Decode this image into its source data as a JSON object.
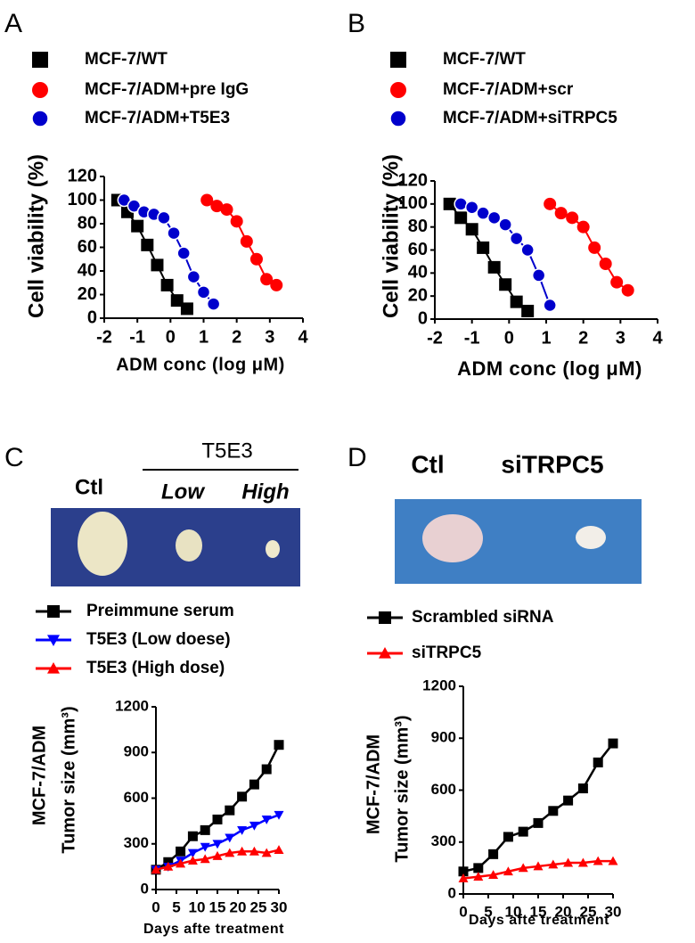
{
  "chart_data": [
    {
      "type": "line",
      "panel": "A",
      "xlabel": "ADM conc (log μM)",
      "ylabel": [
        "Cell viability (%)"
      ],
      "xlim": [
        -2,
        4
      ],
      "ylim": [
        0,
        120
      ],
      "xticks": [
        -2,
        -1,
        0,
        1,
        2,
        3,
        4
      ],
      "yticks": [
        0,
        20,
        40,
        60,
        80,
        100,
        120
      ],
      "series": [
        {
          "name": "MCF-7/WT",
          "color": "#000000",
          "marker": "square",
          "x": [
            -1.6,
            -1.3,
            -1.0,
            -0.7,
            -0.4,
            -0.1,
            0.2,
            0.5
          ],
          "values": [
            100,
            90,
            78,
            62,
            45,
            28,
            15,
            8
          ]
        },
        {
          "name": "MCF-7/ADM+pre IgG",
          "color": "#ff0000",
          "marker": "circle",
          "x": [
            1.1,
            1.4,
            1.7,
            2.0,
            2.3,
            2.6,
            2.9,
            3.2
          ],
          "values": [
            100,
            95,
            92,
            82,
            65,
            50,
            33,
            28
          ]
        },
        {
          "name": "MCF-7/ADM+T5E3",
          "color": "#0000cc",
          "marker": "ring",
          "x": [
            -1.4,
            -1.1,
            -0.8,
            -0.5,
            -0.2,
            0.1,
            0.4,
            0.7,
            1.0,
            1.3
          ],
          "values": [
            100,
            95,
            90,
            88,
            85,
            72,
            55,
            35,
            22,
            12
          ]
        }
      ]
    },
    {
      "type": "line",
      "panel": "B",
      "xlabel": "ADM conc (log μM)",
      "ylabel": [
        "Cell viability (%)"
      ],
      "xlim": [
        -2,
        4
      ],
      "ylim": [
        0,
        120
      ],
      "xticks": [
        -2,
        -1,
        0,
        1,
        2,
        3,
        4
      ],
      "yticks": [
        0,
        20,
        40,
        60,
        80,
        100,
        120
      ],
      "series": [
        {
          "name": "MCF-7/WT",
          "color": "#000000",
          "marker": "square",
          "x": [
            -1.6,
            -1.3,
            -1.0,
            -0.7,
            -0.4,
            -0.1,
            0.2,
            0.5
          ],
          "values": [
            100,
            88,
            78,
            62,
            45,
            30,
            15,
            7
          ]
        },
        {
          "name": "MCF-7/ADM+scr",
          "color": "#ff0000",
          "marker": "circle",
          "x": [
            1.1,
            1.4,
            1.7,
            2.0,
            2.3,
            2.6,
            2.9,
            3.2
          ],
          "values": [
            100,
            92,
            88,
            80,
            62,
            48,
            32,
            25
          ]
        },
        {
          "name": "MCF-7/ADM+siTRPC5",
          "color": "#0000cc",
          "marker": "ring",
          "x": [
            -1.3,
            -1.0,
            -0.7,
            -0.4,
            -0.1,
            0.2,
            0.5,
            0.8,
            1.1
          ],
          "values": [
            100,
            97,
            92,
            88,
            82,
            70,
            60,
            38,
            12
          ]
        }
      ]
    },
    {
      "type": "line",
      "panel": "C",
      "xlabel": "Days afte treatment",
      "ylabel": [
        "MCF-7/ADM",
        "Tumor size (mm³)"
      ],
      "photo_labels": {
        "ctl": "Ctl",
        "group": "T5E3",
        "low": "Low",
        "high": "High"
      },
      "xlim": [
        0,
        30
      ],
      "ylim": [
        0,
        1200
      ],
      "xticks": [
        0,
        5,
        10,
        15,
        20,
        25,
        30
      ],
      "yticks": [
        0,
        300,
        600,
        900,
        1200
      ],
      "x": [
        0,
        3,
        6,
        9,
        12,
        15,
        18,
        21,
        24,
        27,
        30
      ],
      "series": [
        {
          "name": "Preimmune serum",
          "color": "#000000",
          "marker": "square",
          "values": [
            130,
            180,
            250,
            350,
            390,
            460,
            520,
            610,
            690,
            790,
            950
          ]
        },
        {
          "name": "T5E3 (Low doese)",
          "color": "#0000ff",
          "marker": "tri-down",
          "values": [
            130,
            150,
            190,
            240,
            280,
            300,
            340,
            390,
            420,
            460,
            490
          ]
        },
        {
          "name": "T5E3 (High dose)",
          "color": "#ff0000",
          "marker": "tri-up",
          "values": [
            130,
            150,
            170,
            190,
            200,
            220,
            240,
            250,
            250,
            240,
            260
          ]
        }
      ]
    },
    {
      "type": "line",
      "panel": "D",
      "xlabel": "Days afte treatment",
      "ylabel": [
        "MCF-7/ADM",
        "Tumor size (mm³)"
      ],
      "photo_labels": {
        "ctl": "Ctl",
        "group": "siTRPC5"
      },
      "xlim": [
        0,
        30
      ],
      "ylim": [
        0,
        1200
      ],
      "xticks": [
        0,
        5,
        10,
        15,
        20,
        25,
        30
      ],
      "yticks": [
        0,
        300,
        600,
        900,
        1200
      ],
      "x": [
        0,
        3,
        6,
        9,
        12,
        15,
        18,
        21,
        24,
        27,
        30
      ],
      "series": [
        {
          "name": "Scrambled siRNA",
          "color": "#000000",
          "marker": "square",
          "values": [
            130,
            150,
            230,
            330,
            360,
            410,
            480,
            540,
            610,
            760,
            870
          ]
        },
        {
          "name": "siTRPC5",
          "color": "#ff0000",
          "marker": "tri-up",
          "values": [
            90,
            100,
            110,
            130,
            150,
            160,
            170,
            180,
            180,
            190,
            190
          ]
        }
      ]
    }
  ]
}
